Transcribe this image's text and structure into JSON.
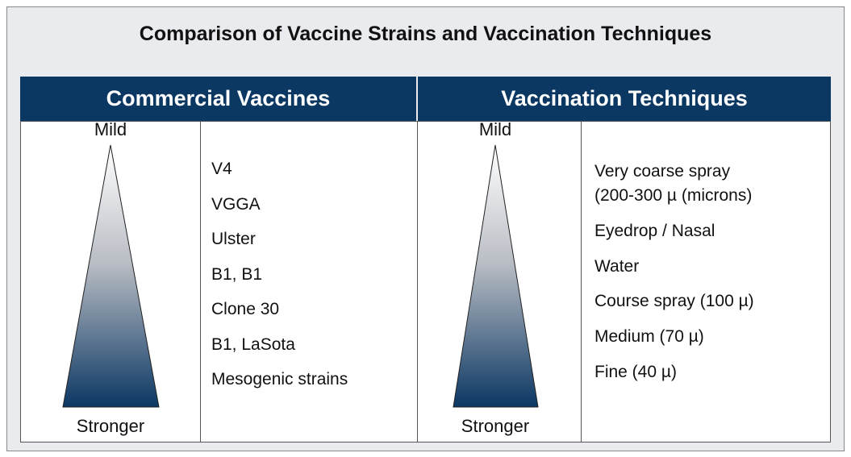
{
  "title": "Comparison of Vaccine Strains and Vaccination Techniques",
  "columns": [
    {
      "header": "Commercial Vaccines",
      "top_label": "Mild",
      "bottom_label": "Stronger",
      "items": [
        {
          "lines": [
            "V4"
          ]
        },
        {
          "lines": [
            "VGGA"
          ]
        },
        {
          "lines": [
            "Ulster"
          ]
        },
        {
          "lines": [
            "B1, B1"
          ]
        },
        {
          "lines": [
            "Clone 30"
          ]
        },
        {
          "lines": [
            "B1, LaSota"
          ]
        },
        {
          "lines": [
            "Mesogenic strains"
          ]
        }
      ]
    },
    {
      "header": "Vaccination Techniques",
      "top_label": "Mild",
      "bottom_label": "Stronger",
      "items": [
        {
          "lines": [
            "Very coarse spray",
            "(200-300 µ (microns)"
          ]
        },
        {
          "lines": [
            "Eyedrop / Nasal"
          ]
        },
        {
          "lines": [
            "Water"
          ]
        },
        {
          "lines": [
            "Course spray (100 µ)"
          ]
        },
        {
          "lines": [
            "Medium (70 µ)"
          ]
        },
        {
          "lines": [
            "Fine (40 µ)"
          ]
        }
      ]
    }
  ]
}
